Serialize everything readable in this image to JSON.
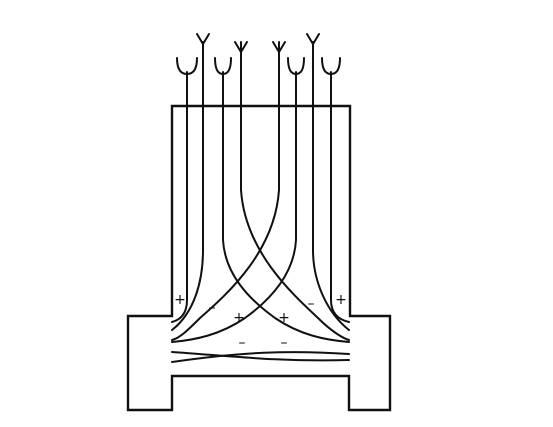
{
  "charges": {
    "plus_outer_left": "+",
    "minus_left": "–",
    "plus_inner_left": "+",
    "plus_inner_right": "+",
    "minus_right": "–",
    "plus_outer_right": "+",
    "minus_lower_left": "–",
    "minus_lower_right": "–"
  },
  "colors": {
    "stroke": "#111111",
    "background": "#ffffff"
  }
}
